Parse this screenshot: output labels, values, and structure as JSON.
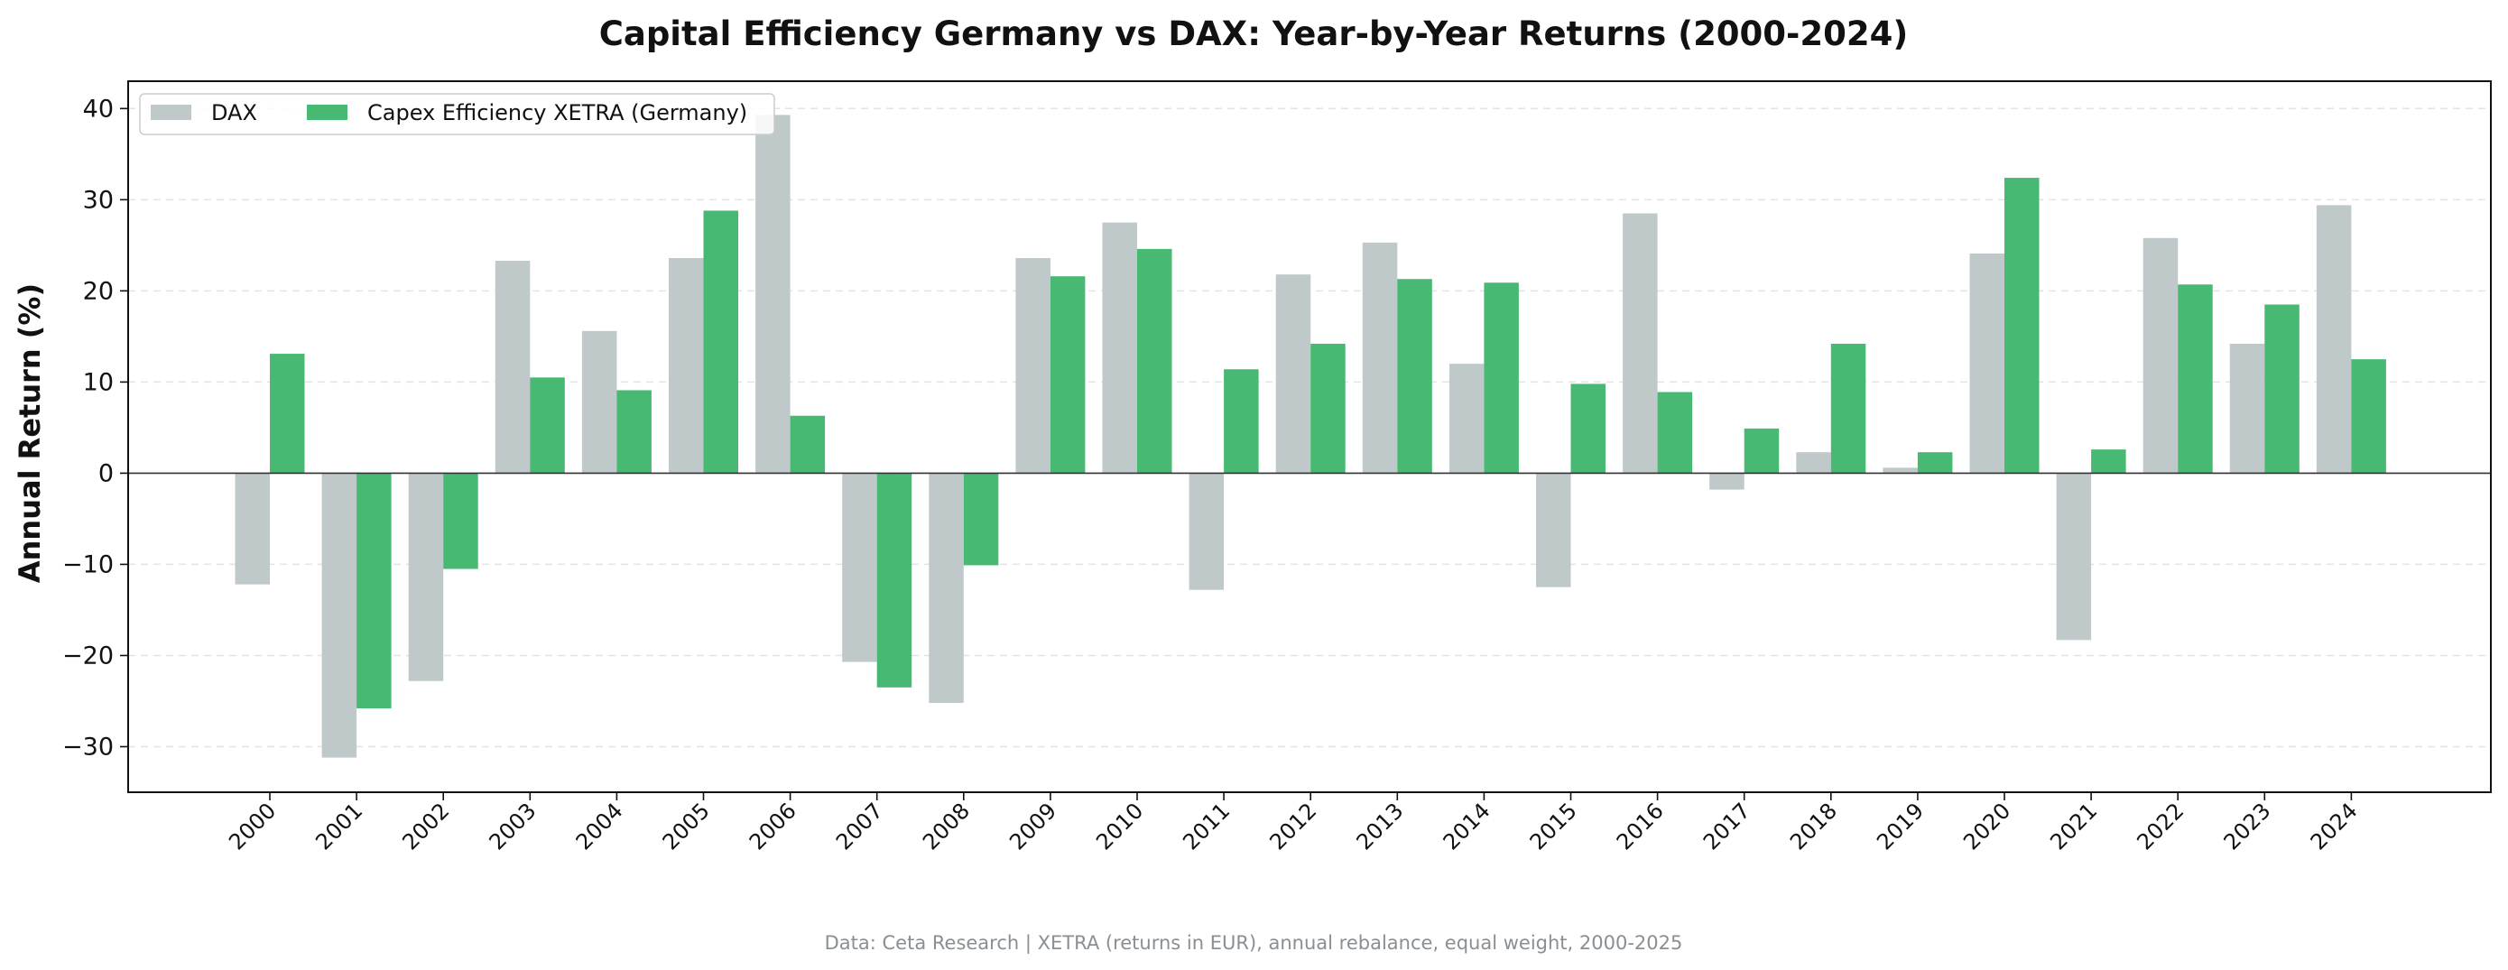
{
  "chart_data": {
    "type": "bar",
    "title": "Capital Efficiency Germany vs DAX: Year-by-Year Returns (2000-2024)",
    "xlabel": "",
    "ylabel": "Annual Return (%)",
    "ylim": [
      -35,
      43
    ],
    "yticks": [
      -30,
      -20,
      -10,
      0,
      10,
      20,
      30,
      40
    ],
    "ytick_labels": [
      "−30",
      "−20",
      "−10",
      "0",
      "10",
      "20",
      "30",
      "40"
    ],
    "grid": "horizontal dashed",
    "legend_position": "top-left",
    "categories": [
      "2000",
      "2001",
      "2002",
      "2003",
      "2004",
      "2005",
      "2006",
      "2007",
      "2008",
      "2009",
      "2010",
      "2011",
      "2012",
      "2013",
      "2014",
      "2015",
      "2016",
      "2017",
      "2018",
      "2019",
      "2020",
      "2021",
      "2022",
      "2023",
      "2024"
    ],
    "series": [
      {
        "name": "DAX",
        "color": "#c0c9c9",
        "values": [
          -12.2,
          -31.2,
          -22.8,
          23.3,
          15.6,
          23.6,
          39.3,
          -20.7,
          -25.2,
          23.6,
          27.5,
          -12.8,
          21.8,
          25.3,
          12.0,
          -12.5,
          28.5,
          -1.8,
          2.3,
          0.6,
          24.1,
          -18.3,
          25.8,
          14.2,
          29.4
        ]
      },
      {
        "name": "Capex Efficiency XETRA (Germany)",
        "color": "#48b973",
        "values": [
          13.1,
          -25.8,
          -10.5,
          10.5,
          9.1,
          28.8,
          6.3,
          -23.5,
          -10.1,
          21.6,
          24.6,
          11.4,
          14.2,
          21.3,
          20.9,
          9.8,
          8.9,
          4.9,
          14.2,
          2.3,
          32.4,
          2.6,
          20.7,
          18.5,
          12.5
        ]
      }
    ],
    "footer": "Data: Ceta Research | XETRA (returns in EUR), annual rebalance, equal weight, 2000-2025"
  }
}
